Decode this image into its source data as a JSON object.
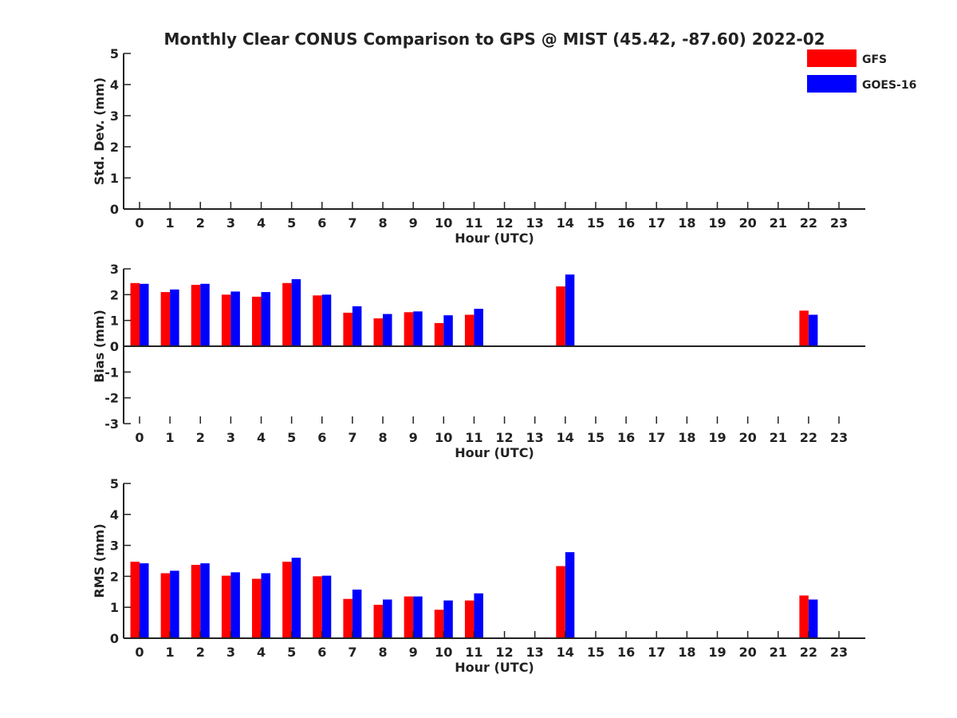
{
  "figure": {
    "title": "Monthly Clear CONUS Comparison to GPS @ MIST (45.42, -87.60) 2022-02"
  },
  "legend": {
    "placement": "top-right",
    "items": [
      {
        "name": "GFS",
        "color": "#ff0000"
      },
      {
        "name": "GOES-16",
        "color": "#0000ff"
      }
    ]
  },
  "chart_data": [
    {
      "type": "bar",
      "xlabel": "Hour (UTC)",
      "ylabel": "Std. Dev. (mm)",
      "ylim": [
        0,
        5
      ],
      "yticks": [
        0,
        1,
        2,
        3,
        4,
        5
      ],
      "categories": [
        "0",
        "1",
        "2",
        "3",
        "4",
        "5",
        "6",
        "7",
        "8",
        "9",
        "10",
        "11",
        "12",
        "13",
        "14",
        "15",
        "16",
        "17",
        "18",
        "19",
        "20",
        "21",
        "22",
        "23"
      ],
      "series": [
        {
          "name": "GFS",
          "color": "#ff0000",
          "values": [
            null,
            null,
            null,
            null,
            null,
            null,
            null,
            null,
            null,
            null,
            null,
            null,
            null,
            null,
            null,
            null,
            null,
            null,
            null,
            null,
            null,
            null,
            null,
            null
          ]
        },
        {
          "name": "GOES-16",
          "color": "#0000ff",
          "values": [
            null,
            null,
            null,
            null,
            null,
            null,
            null,
            null,
            null,
            null,
            null,
            null,
            null,
            null,
            null,
            null,
            null,
            null,
            null,
            null,
            null,
            null,
            null,
            null
          ]
        }
      ]
    },
    {
      "type": "bar",
      "xlabel": "Hour (UTC)",
      "ylabel": "Bias (mm)",
      "ylim": [
        -3,
        3
      ],
      "yticks": [
        -3,
        -2,
        -1,
        0,
        1,
        2,
        3
      ],
      "categories": [
        "0",
        "1",
        "2",
        "3",
        "4",
        "5",
        "6",
        "7",
        "8",
        "9",
        "10",
        "11",
        "12",
        "13",
        "14",
        "15",
        "16",
        "17",
        "18",
        "19",
        "20",
        "21",
        "22",
        "23"
      ],
      "series": [
        {
          "name": "GFS",
          "color": "#ff0000",
          "values": [
            2.45,
            2.1,
            2.38,
            2.0,
            1.92,
            2.45,
            1.97,
            1.3,
            1.08,
            1.32,
            0.9,
            1.22,
            null,
            null,
            2.32,
            null,
            null,
            null,
            null,
            null,
            null,
            null,
            1.38,
            null
          ]
        },
        {
          "name": "GOES-16",
          "color": "#0000ff",
          "values": [
            2.42,
            2.2,
            2.42,
            2.12,
            2.1,
            2.6,
            2.0,
            1.55,
            1.25,
            1.35,
            1.2,
            1.45,
            null,
            null,
            2.78,
            null,
            null,
            null,
            null,
            null,
            null,
            null,
            1.22,
            null
          ]
        }
      ]
    },
    {
      "type": "bar",
      "xlabel": "Hour (UTC)",
      "ylabel": "RMS (mm)",
      "ylim": [
        0,
        5
      ],
      "yticks": [
        0,
        1,
        2,
        3,
        4,
        5
      ],
      "categories": [
        "0",
        "1",
        "2",
        "3",
        "4",
        "5",
        "6",
        "7",
        "8",
        "9",
        "10",
        "11",
        "12",
        "13",
        "14",
        "15",
        "16",
        "17",
        "18",
        "19",
        "20",
        "21",
        "22",
        "23"
      ],
      "series": [
        {
          "name": "GFS",
          "color": "#ff0000",
          "values": [
            2.47,
            2.1,
            2.37,
            2.02,
            1.92,
            2.47,
            2.0,
            1.27,
            1.08,
            1.35,
            0.92,
            1.22,
            null,
            null,
            2.33,
            null,
            null,
            null,
            null,
            null,
            null,
            null,
            1.38,
            null
          ]
        },
        {
          "name": "GOES-16",
          "color": "#0000ff",
          "values": [
            2.42,
            2.18,
            2.42,
            2.13,
            2.1,
            2.6,
            2.02,
            1.57,
            1.25,
            1.35,
            1.22,
            1.45,
            null,
            null,
            2.78,
            null,
            null,
            null,
            null,
            null,
            null,
            null,
            1.25,
            null
          ]
        }
      ]
    }
  ]
}
